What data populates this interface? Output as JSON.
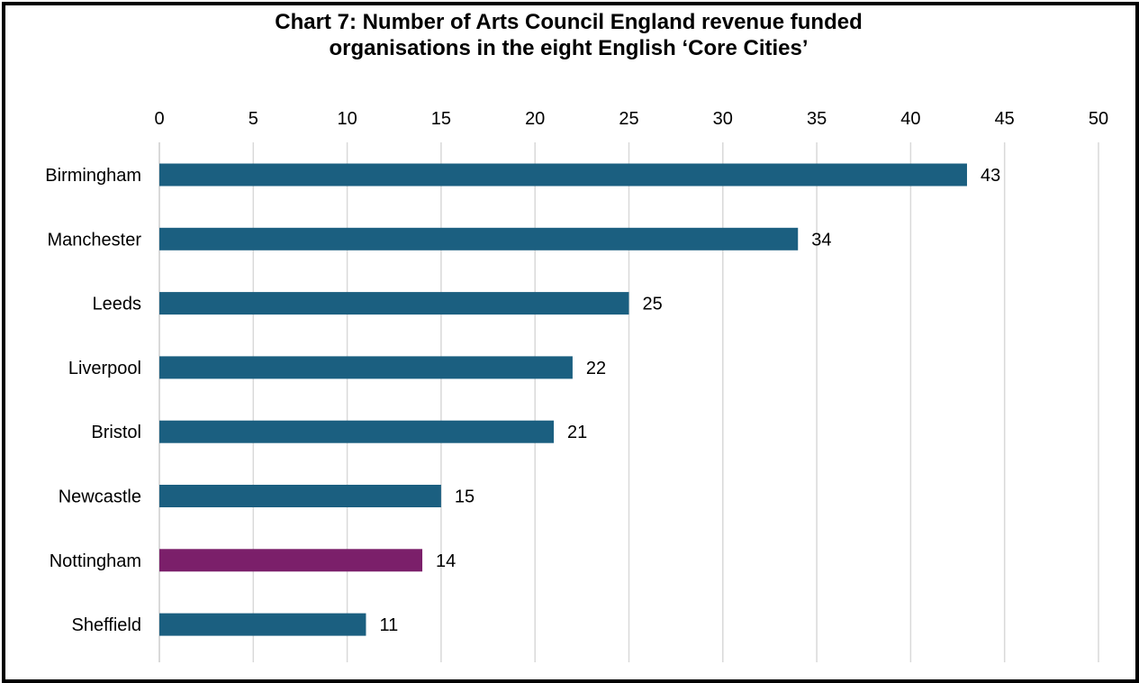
{
  "chart_data": {
    "type": "bar",
    "orientation": "horizontal",
    "title_lines": [
      "Chart 7: Number of Arts Council England revenue funded",
      "organisations in the eight English ‘Core Cities’"
    ],
    "xlabel": "",
    "ylabel": "",
    "xlim": [
      0,
      50
    ],
    "x_ticks": [
      "0",
      "5",
      "10",
      "15",
      "20",
      "25",
      "30",
      "35",
      "40",
      "45",
      "50"
    ],
    "x_axis_position": "top",
    "grid": true,
    "legend": false,
    "categories": [
      "Birmingham",
      "Manchester",
      "Leeds",
      "Liverpool",
      "Bristol",
      "Newcastle",
      "Nottingham",
      "Sheffield"
    ],
    "values": [
      43,
      34,
      25,
      22,
      21,
      15,
      14,
      11
    ],
    "data_labels": [
      "43",
      "34",
      "25",
      "22",
      "21",
      "15",
      "14",
      "11"
    ],
    "colors": [
      "#1b5f80",
      "#1b5f80",
      "#1b5f80",
      "#1b5f80",
      "#1b5f80",
      "#1b5f80",
      "#7b1f6a",
      "#1b5f80"
    ],
    "gridline_color": "#d9d9d9",
    "axis_line_color": "#d9d9d9"
  }
}
